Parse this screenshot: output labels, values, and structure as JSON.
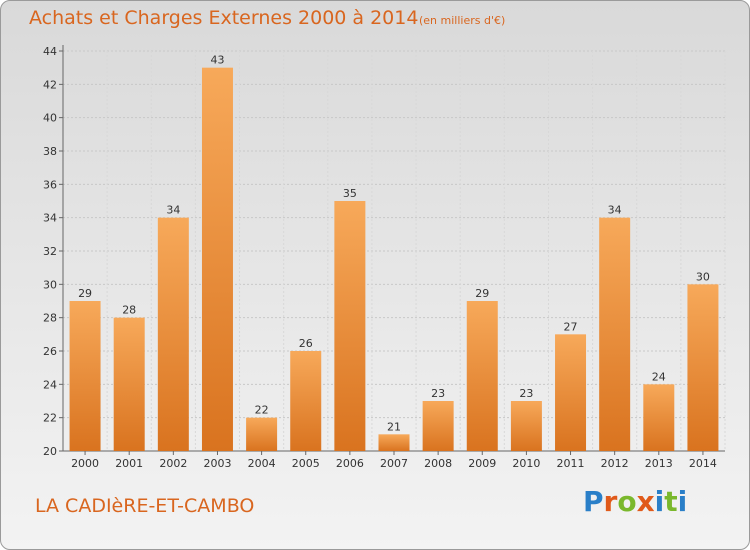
{
  "header": {
    "title": "Achats et Charges Externes 2000 à 2014",
    "subtitle": "(en milliers d'€)"
  },
  "footer": {
    "commune": "LA CADIèRE-ET-CAMBO",
    "logo_text": "Proxiti",
    "logo_letters": [
      {
        "char": "P",
        "color": "#2a7fc8"
      },
      {
        "char": "r",
        "color": "#e05a1a"
      },
      {
        "char": "o",
        "color": "#7ab82c"
      },
      {
        "char": "x",
        "color": "#e05a1a"
      },
      {
        "char": "i",
        "color": "#2a7fc8"
      },
      {
        "char": "t",
        "color": "#7ab82c"
      },
      {
        "char": "i",
        "color": "#2a7fc8"
      }
    ]
  },
  "colors": {
    "bar_light": "#f7a95a",
    "bar_dark": "#d9731f",
    "accent": "#d9661f"
  },
  "chart_data": {
    "type": "bar",
    "title": "Achats et Charges Externes 2000 à 2014",
    "subtitle": "(en milliers d'€)",
    "categories": [
      "2000",
      "2001",
      "2002",
      "2003",
      "2004",
      "2005",
      "2006",
      "2007",
      "2008",
      "2009",
      "2010",
      "2011",
      "2012",
      "2013",
      "2014"
    ],
    "values": [
      29,
      28,
      34,
      43,
      22,
      26,
      35,
      21,
      23,
      29,
      23,
      27,
      34,
      24,
      30
    ],
    "ylim": [
      20,
      44
    ],
    "yticks": [
      20,
      22,
      24,
      26,
      28,
      30,
      32,
      34,
      36,
      38,
      40,
      42,
      44
    ],
    "grid": true,
    "data_labels": true
  }
}
